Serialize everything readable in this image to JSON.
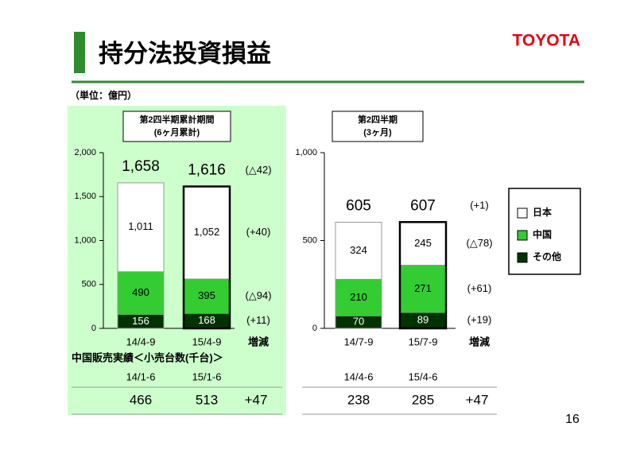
{
  "header": {
    "title": "持分法投資損益",
    "logo": "TOYOTA"
  },
  "unit": "（単位：億円）",
  "chart_data": [
    {
      "type": "bar",
      "stacked": true,
      "title": "第2四半期累計期間",
      "subtitle": "(6ヶ月累計)",
      "categories": [
        "14/4-9",
        "15/4-9"
      ],
      "series": [
        {
          "name": "日本",
          "color": "#ffffff",
          "values": [
            1011,
            1052
          ],
          "value_labels": [
            "1,011",
            "1,052"
          ]
        },
        {
          "name": "中国",
          "color": "#33cc33",
          "values": [
            490,
            395
          ]
        },
        {
          "name": "その他",
          "color": "#003300",
          "values": [
            156,
            168
          ]
        }
      ],
      "totals": {
        "values": [
          1658,
          1616
        ],
        "value_labels": [
          "1,658",
          "1,616"
        ]
      },
      "change_labels": [
        "(△42)",
        "(+40)",
        "(△94)",
        "(+11)"
      ],
      "change_header": "増減",
      "ylim": [
        0,
        2000
      ],
      "yticks": [
        0,
        500,
        {
          "value": 1000,
          "label": "1,000"
        },
        {
          "value": 1500,
          "label": "1,500"
        },
        {
          "value": 2000,
          "label": "2,000"
        }
      ],
      "legend": false
    },
    {
      "type": "bar",
      "stacked": true,
      "title": "第2四半期",
      "subtitle": "(3ヶ月)",
      "categories": [
        "14/7-9",
        "15/7-9"
      ],
      "series": [
        {
          "name": "日本",
          "color": "#ffffff",
          "values": [
            324,
            245
          ]
        },
        {
          "name": "中国",
          "color": "#33cc33",
          "values": [
            210,
            271
          ]
        },
        {
          "name": "その他",
          "color": "#003300",
          "values": [
            70,
            89
          ]
        }
      ],
      "totals": {
        "values": [
          605,
          607
        ]
      },
      "change_labels": [
        "(+1)",
        "(△78)",
        "(+61)",
        "(+19)"
      ],
      "change_header": "増減",
      "ylim": [
        0,
        1000
      ],
      "yticks": [
        0,
        500,
        {
          "value": 1000,
          "label": "1,000"
        }
      ],
      "legend": true
    }
  ],
  "sales_table": {
    "title": "中国販売実績＜小売台数(千台)＞",
    "groups": [
      {
        "periods": [
          "14/1-6",
          "15/1-6"
        ],
        "values": [
          466,
          513
        ],
        "change": "+47"
      },
      {
        "periods": [
          "14/4-6",
          "15/4-6"
        ],
        "values": [
          238,
          285
        ],
        "change": "+47"
      }
    ]
  },
  "page_number": "16"
}
